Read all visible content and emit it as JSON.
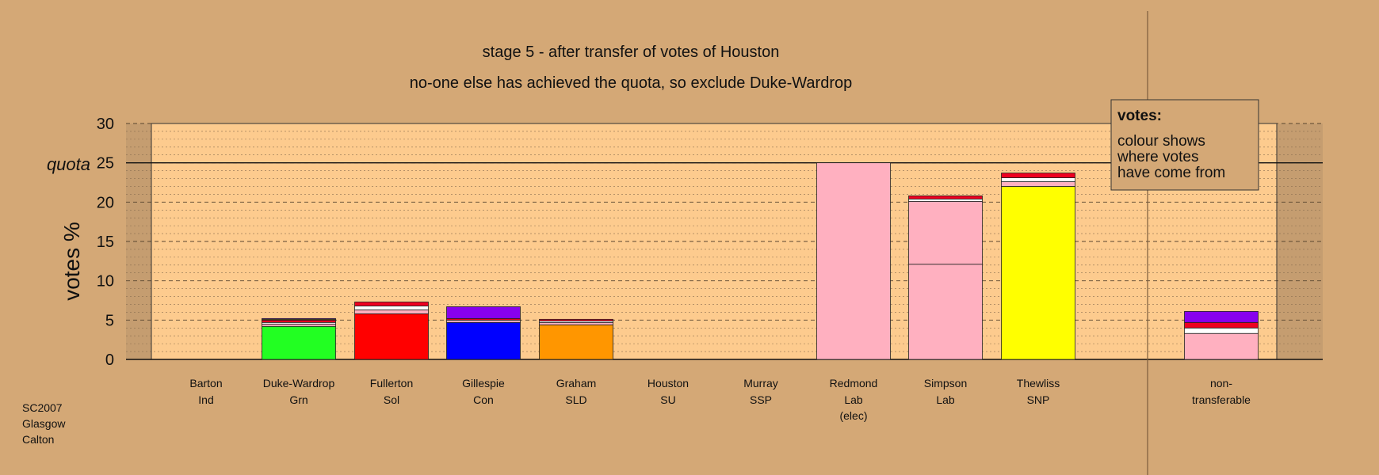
{
  "chart_data": {
    "type": "bar",
    "stacked": true,
    "title": "stage 5 - after transfer of votes of Houston",
    "subtitle": "no-one else has achieved the quota, so exclude Duke-Wardrop",
    "ylabel": "votes %",
    "ylim": [
      0,
      30
    ],
    "yticks": [
      "0",
      "5",
      "10",
      "15",
      "20",
      "25",
      "30"
    ],
    "quota": {
      "label": "quota",
      "value": 25
    },
    "legend": {
      "title": "votes:",
      "lines": [
        "colour shows",
        "where votes",
        "have come from"
      ],
      "placement": "top-right"
    },
    "source": [
      "SC2007",
      "Glasgow",
      "Calton"
    ],
    "grid": true,
    "categories": [
      {
        "name": "Barton",
        "party": "Ind",
        "note": "",
        "segments": []
      },
      {
        "name": "Duke-Wardrop",
        "party": "Grn",
        "note": "",
        "segments": [
          {
            "value": 4.2,
            "color": "#22ff22"
          },
          {
            "value": 0.3,
            "color": "#ffb0c0"
          },
          {
            "value": 0.2,
            "color": "#ffffff"
          },
          {
            "value": 0.3,
            "color": "#ee0020"
          },
          {
            "value": 0.1,
            "color": "#ffff00"
          },
          {
            "value": 0.1,
            "color": "#8800ee"
          }
        ]
      },
      {
        "name": "Fullerton",
        "party": "Sol",
        "note": "",
        "segments": [
          {
            "value": 5.8,
            "color": "#ff0000"
          },
          {
            "value": 0.5,
            "color": "#ffb0c0"
          },
          {
            "value": 0.5,
            "color": "#ffffff"
          },
          {
            "value": 0.5,
            "color": "#ee0020"
          }
        ]
      },
      {
        "name": "Gillespie",
        "party": "Con",
        "note": "",
        "segments": [
          {
            "value": 4.7,
            "color": "#0000ff"
          },
          {
            "value": 0.3,
            "color": "#ffb0c0"
          },
          {
            "value": 0.2,
            "color": "#ee0020"
          },
          {
            "value": 1.5,
            "color": "#8800ee"
          }
        ]
      },
      {
        "name": "Graham",
        "party": "SLD",
        "note": "",
        "segments": [
          {
            "value": 4.4,
            "color": "#ff9600"
          },
          {
            "value": 0.3,
            "color": "#ffb0c0"
          },
          {
            "value": 0.2,
            "color": "#ffffff"
          },
          {
            "value": 0.2,
            "color": "#ee0020"
          }
        ]
      },
      {
        "name": "Houston",
        "party": "SU",
        "note": "",
        "segments": []
      },
      {
        "name": "Murray",
        "party": "SSP",
        "note": "",
        "segments": []
      },
      {
        "name": "Redmond",
        "party": "Lab",
        "note": "(elec)",
        "segments": [
          {
            "value": 25,
            "color": "#ffb0c0"
          }
        ]
      },
      {
        "name": "Simpson",
        "party": "Lab",
        "note": "",
        "segments": [
          {
            "value": 12.1,
            "color": "#ffb0c0"
          },
          {
            "value": 8.0,
            "color": "#ffb0c0"
          },
          {
            "value": 0.3,
            "color": "#ffffff"
          },
          {
            "value": 0.4,
            "color": "#ee0020"
          }
        ]
      },
      {
        "name": "Thewliss",
        "party": "SNP",
        "note": "",
        "segments": [
          {
            "value": 22,
            "color": "#ffff00"
          },
          {
            "value": 0.6,
            "color": "#ffb0c0"
          },
          {
            "value": 0.5,
            "color": "#ffffff"
          },
          {
            "value": 0.6,
            "color": "#ee0020"
          }
        ]
      },
      {
        "name": "non-",
        "party": "transferable",
        "note": "",
        "segments": [
          {
            "value": 3.3,
            "color": "#ffb0c0"
          },
          {
            "value": 0.7,
            "color": "#ffffff"
          },
          {
            "value": 0.7,
            "color": "#ee0020"
          },
          {
            "value": 1.4,
            "color": "#8800ee"
          }
        ]
      }
    ]
  }
}
